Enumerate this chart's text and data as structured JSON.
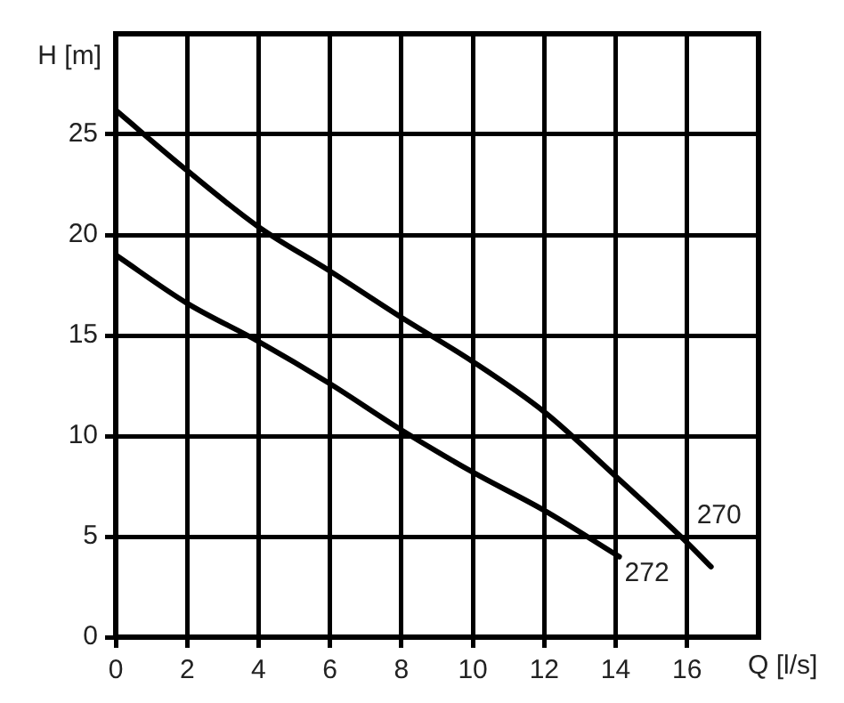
{
  "chart_data": {
    "type": "line",
    "xlabel": "Q [l/s]",
    "ylabel": "H [m]",
    "xlim": [
      0,
      18
    ],
    "xticks": [
      0,
      2,
      4,
      6,
      8,
      10,
      12,
      14,
      16
    ],
    "ylim": [
      0,
      30
    ],
    "yticks": [
      0,
      5,
      10,
      15,
      20,
      25
    ],
    "grid": true,
    "legend": false,
    "marker": "none",
    "line_style": "solid",
    "series": [
      {
        "name": "270",
        "color": "#000000",
        "x": [
          0,
          2,
          4,
          6,
          8,
          10,
          12,
          14,
          16,
          16.67
        ],
        "values": [
          26.2,
          23.2,
          20.4,
          18.2,
          15.9,
          13.7,
          11.2,
          8.0,
          4.7,
          3.5
        ]
      },
      {
        "name": "272",
        "color": "#000000",
        "x": [
          0,
          2,
          4,
          6,
          8,
          10,
          12,
          14.1
        ],
        "values": [
          19.0,
          16.6,
          14.7,
          12.6,
          10.3,
          8.2,
          6.3,
          4.0
        ]
      }
    ]
  }
}
